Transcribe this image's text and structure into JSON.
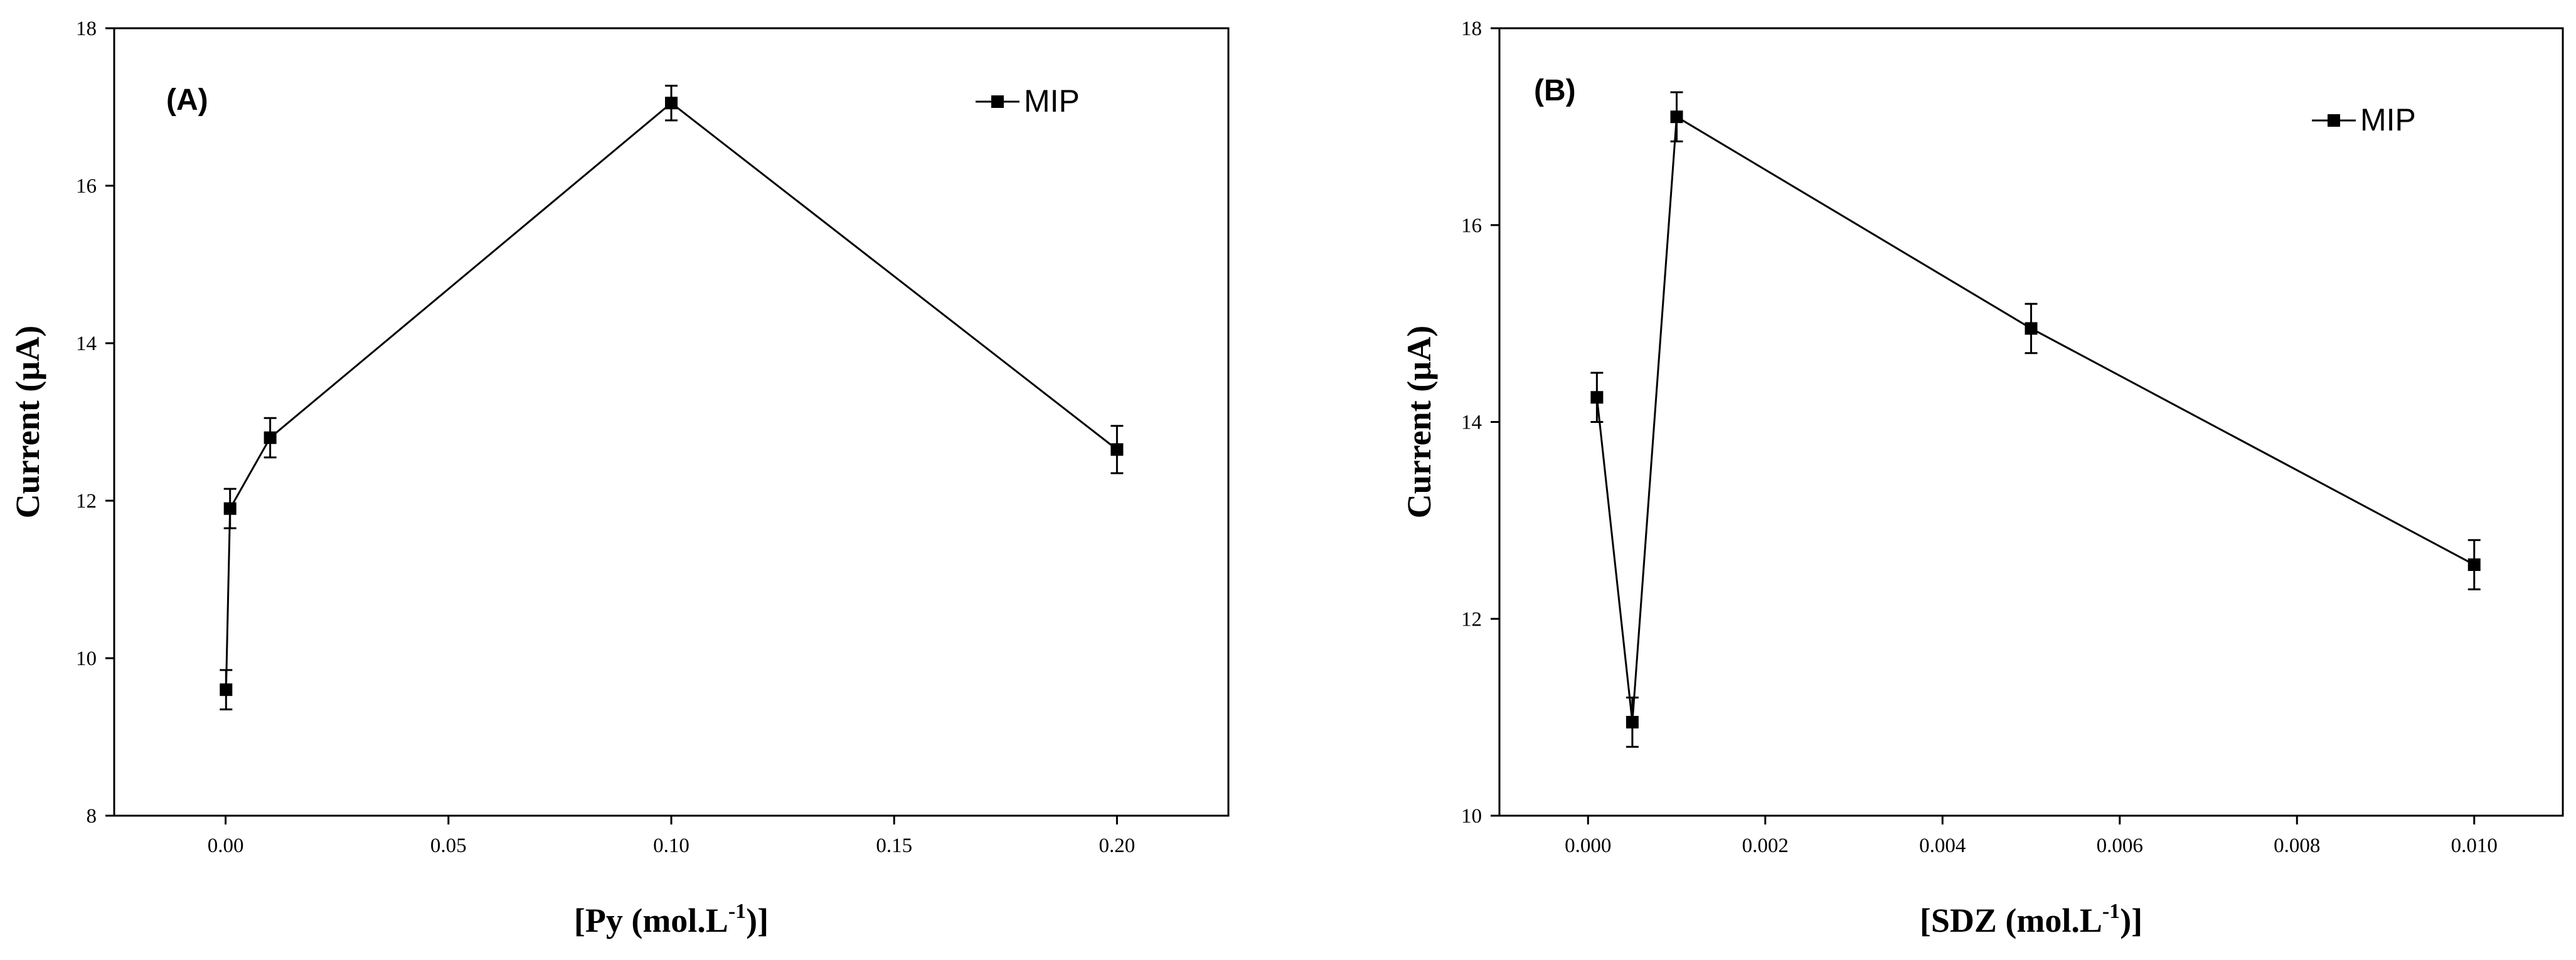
{
  "chart_data": [
    {
      "type": "line",
      "panel_label": "(A)",
      "xlabel": "[Py (mol.L",
      "xlabel_sup": "-1",
      "xlabel_end": ")]",
      "ylabel": "Current (µA)",
      "xlim": [
        -0.025,
        0.225
      ],
      "ylim": [
        8,
        18
      ],
      "xticks": [
        0.0,
        0.05,
        0.1,
        0.15,
        0.2
      ],
      "xtick_labels": [
        "0.00",
        "0.05",
        "0.10",
        "0.15",
        "0.20"
      ],
      "yticks": [
        8,
        10,
        12,
        14,
        16,
        18
      ],
      "ytick_labels": [
        "8",
        "10",
        "12",
        "14",
        "16",
        "18"
      ],
      "legend_position": "top-right",
      "grid": false,
      "series": [
        {
          "name": "MIP",
          "x": [
            0.0001,
            0.001,
            0.01,
            0.1,
            0.2
          ],
          "y": [
            9.6,
            11.9,
            12.8,
            17.05,
            12.65
          ],
          "err": [
            0.25,
            0.25,
            0.25,
            0.22,
            0.3
          ]
        }
      ]
    },
    {
      "type": "line",
      "panel_label": "(B)",
      "xlabel": "[SDZ (mol.L",
      "xlabel_sup": "-1",
      "xlabel_end": ")]",
      "ylabel": "Current (µA)",
      "xlim": [
        -0.001,
        0.011
      ],
      "ylim": [
        10,
        18
      ],
      "xticks": [
        0.0,
        0.002,
        0.004,
        0.006,
        0.008,
        0.01
      ],
      "xtick_labels": [
        "0.000",
        "0.002",
        "0.004",
        "0.006",
        "0.008",
        "0.010"
      ],
      "yticks": [
        10,
        12,
        14,
        16,
        18
      ],
      "ytick_labels": [
        "10",
        "12",
        "14",
        "16",
        "18"
      ],
      "legend_position": "top-right",
      "grid": false,
      "series": [
        {
          "name": "MIP",
          "x": [
            0.0001,
            0.0005,
            0.001,
            0.005,
            0.01
          ],
          "y": [
            14.25,
            10.95,
            17.1,
            14.95,
            12.55
          ],
          "err": [
            0.25,
            0.25,
            0.25,
            0.25,
            0.25
          ]
        }
      ]
    }
  ]
}
